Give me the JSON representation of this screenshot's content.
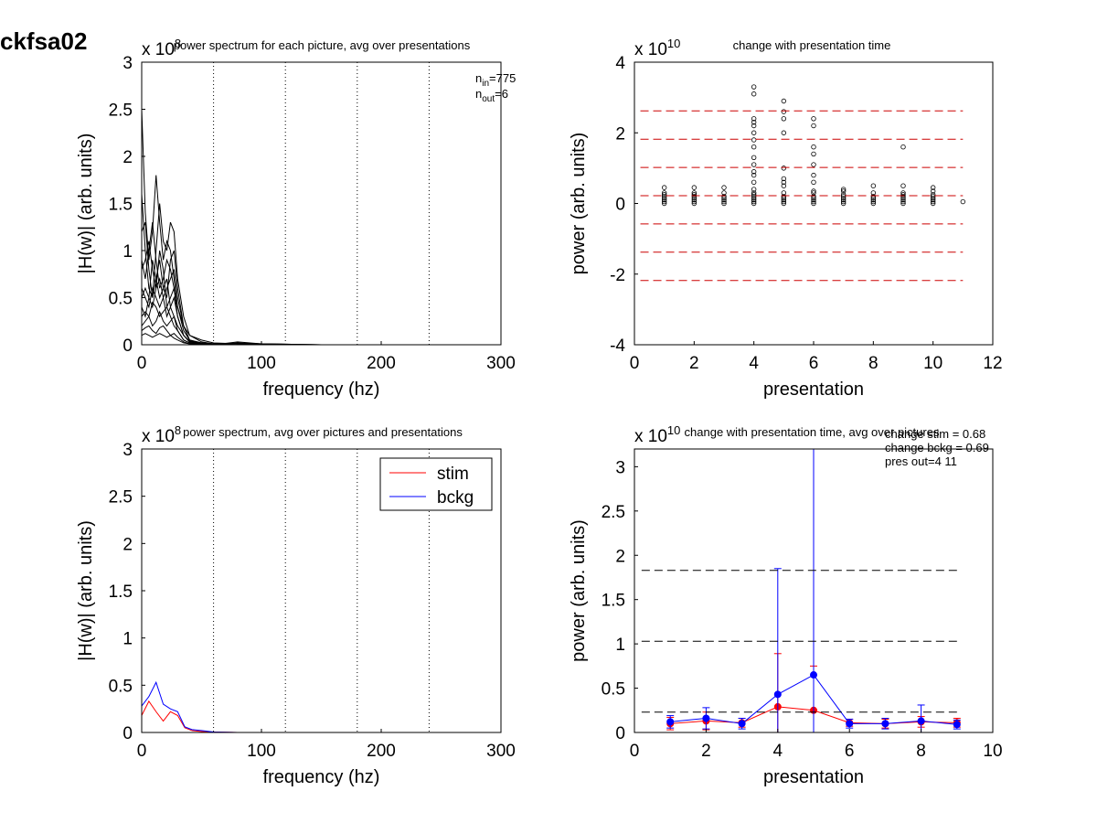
{
  "page_title": "ckfsa02",
  "chart_data": [
    {
      "id": "tl",
      "type": "line",
      "title": "power spectrum for each picture, avg over presentations",
      "xlabel": "frequency (hz)",
      "ylabel": "|H(w)| (arb. units)",
      "xlim": [
        0,
        300
      ],
      "ylim": [
        0,
        3
      ],
      "xticks": [
        0,
        100,
        200,
        300
      ],
      "yticks": [
        0,
        0.5,
        1,
        1.5,
        2,
        2.5,
        3
      ],
      "exponent": "x 10",
      "exponent_power": "8",
      "vlines": [
        60,
        120,
        180,
        240,
        300
      ],
      "annotation": [
        {
          "base": "n",
          "sub": "in",
          "rest": "=775"
        },
        {
          "base": "n",
          "sub": "out",
          "rest": "=6"
        }
      ],
      "series": [
        {
          "x": [
            0,
            3,
            6,
            9,
            12,
            15,
            18,
            21,
            24,
            27,
            30,
            35,
            40,
            50,
            60,
            80,
            100,
            150,
            300
          ],
          "values": [
            2.5,
            1.4,
            0.9,
            1.2,
            1.8,
            1.3,
            0.9,
            1.1,
            1.0,
            0.7,
            0.4,
            0.2,
            0.1,
            0.05,
            0.02,
            0.01,
            0.01,
            0,
            0
          ]
        },
        {
          "x": [
            0,
            3,
            6,
            9,
            12,
            15,
            18,
            21,
            24,
            27,
            30,
            35,
            40,
            50,
            60,
            80,
            100,
            150,
            300
          ],
          "values": [
            1.6,
            1.0,
            0.6,
            0.5,
            1.0,
            1.5,
            1.1,
            1.0,
            1.3,
            1.2,
            0.7,
            0.3,
            0.1,
            0.03,
            0.01,
            0,
            0,
            0,
            0
          ]
        },
        {
          "x": [
            0,
            3,
            6,
            9,
            12,
            15,
            18,
            21,
            24,
            27,
            30,
            35,
            40,
            50,
            60,
            80,
            100,
            150,
            300
          ],
          "values": [
            1.2,
            1.3,
            0.8,
            0.5,
            0.7,
            0.9,
            0.6,
            0.5,
            0.9,
            1.0,
            0.6,
            0.2,
            0.05,
            0.02,
            0.01,
            0,
            0,
            0,
            0
          ]
        },
        {
          "x": [
            0,
            3,
            6,
            9,
            12,
            15,
            18,
            21,
            24,
            27,
            30,
            35,
            40,
            50,
            60,
            80,
            100,
            150,
            300
          ],
          "values": [
            0.8,
            0.9,
            1.1,
            0.8,
            0.6,
            1.0,
            0.8,
            0.4,
            0.5,
            0.6,
            0.4,
            0.15,
            0.05,
            0.01,
            0.01,
            0,
            0,
            0,
            0
          ]
        },
        {
          "x": [
            0,
            3,
            6,
            9,
            12,
            15,
            18,
            21,
            24,
            27,
            30,
            35,
            40,
            50,
            60,
            80,
            100,
            150,
            300
          ],
          "values": [
            0.5,
            0.6,
            0.5,
            0.9,
            0.7,
            0.5,
            0.6,
            0.7,
            0.4,
            0.3,
            0.2,
            0.1,
            0.04,
            0.01,
            0,
            0,
            0,
            0,
            0
          ]
        },
        {
          "x": [
            0,
            3,
            6,
            9,
            12,
            15,
            18,
            21,
            24,
            27,
            30,
            35,
            40,
            50,
            60,
            80,
            100,
            150,
            300
          ],
          "values": [
            0.4,
            0.3,
            0.5,
            0.4,
            0.6,
            0.7,
            0.5,
            0.3,
            0.4,
            0.5,
            0.3,
            0.1,
            0.03,
            0.01,
            0,
            0,
            0,
            0,
            0
          ]
        },
        {
          "x": [
            0,
            3,
            6,
            9,
            12,
            15,
            18,
            21,
            24,
            27,
            30,
            35,
            40,
            50,
            60,
            80,
            100,
            150,
            300
          ],
          "values": [
            0.3,
            0.35,
            0.3,
            0.45,
            0.4,
            0.3,
            0.35,
            0.4,
            0.3,
            0.2,
            0.15,
            0.05,
            0.02,
            0.01,
            0,
            0.02,
            0.01,
            0,
            0
          ]
        },
        {
          "x": [
            0,
            3,
            6,
            9,
            12,
            15,
            18,
            21,
            24,
            27,
            30,
            35,
            40,
            50,
            60,
            80,
            100,
            150,
            300
          ],
          "values": [
            0.2,
            0.25,
            0.3,
            0.2,
            0.25,
            0.35,
            0.25,
            0.2,
            0.25,
            0.3,
            0.15,
            0.05,
            0.02,
            0,
            0,
            0.03,
            0.01,
            0,
            0
          ]
        },
        {
          "x": [
            0,
            3,
            6,
            9,
            12,
            15,
            18,
            21,
            24,
            27,
            30,
            35,
            40,
            50,
            60,
            80,
            100,
            150,
            300
          ],
          "values": [
            0.15,
            0.18,
            0.2,
            0.15,
            0.12,
            0.18,
            0.2,
            0.15,
            0.1,
            0.12,
            0.08,
            0.03,
            0.01,
            0,
            0,
            0,
            0,
            0,
            0
          ]
        },
        {
          "x": [
            0,
            3,
            6,
            9,
            12,
            15,
            18,
            21,
            24,
            27,
            30,
            35,
            40,
            50,
            60,
            80,
            100,
            150,
            300
          ],
          "values": [
            0.6,
            0.5,
            0.4,
            0.6,
            0.5,
            0.4,
            0.5,
            0.6,
            0.7,
            0.8,
            0.5,
            0.2,
            0.05,
            0.02,
            0.01,
            0,
            0,
            0,
            0
          ]
        },
        {
          "x": [
            0,
            3,
            6,
            9,
            12,
            15,
            18,
            21,
            24,
            27,
            30,
            35,
            40,
            50,
            60,
            80,
            100,
            150,
            300
          ],
          "values": [
            0.1,
            0.12,
            0.1,
            0.08,
            0.1,
            0.12,
            0.1,
            0.08,
            0.1,
            0.07,
            0.05,
            0.02,
            0.01,
            0,
            0,
            0,
            0,
            0,
            0
          ]
        },
        {
          "x": [
            0,
            3,
            6,
            9,
            12,
            15,
            18,
            21,
            24,
            27,
            30,
            35,
            40,
            50,
            60,
            80,
            100,
            150,
            300
          ],
          "values": [
            0.9,
            0.7,
            1.0,
            1.3,
            0.9,
            0.6,
            0.7,
            0.9,
            0.8,
            0.6,
            0.3,
            0.1,
            0.03,
            0.01,
            0,
            0,
            0,
            0,
            0
          ]
        }
      ]
    },
    {
      "id": "tr",
      "type": "scatter",
      "title": "change with presentation time",
      "xlabel": "presentation",
      "ylabel": "power (arb. units)",
      "xlim": [
        0,
        12
      ],
      "ylim": [
        -4,
        4
      ],
      "xticks": [
        0,
        2,
        4,
        6,
        8,
        10,
        12
      ],
      "yticks": [
        -4,
        -2,
        0,
        2,
        4
      ],
      "exponent": "x 10",
      "exponent_power": "10",
      "hlines": [
        2.62,
        1.82,
        1.02,
        0.22,
        -0.58,
        -1.38,
        -2.18
      ],
      "points": [
        {
          "x": 1,
          "ys": [
            0.0,
            0.05,
            0.1,
            0.15,
            0.2,
            0.25,
            0.3,
            0.45
          ]
        },
        {
          "x": 2,
          "ys": [
            0.0,
            0.05,
            0.1,
            0.15,
            0.2,
            0.25,
            0.3,
            0.45
          ]
        },
        {
          "x": 3,
          "ys": [
            0.0,
            0.05,
            0.1,
            0.15,
            0.2,
            0.3,
            0.45
          ]
        },
        {
          "x": 4,
          "ys": [
            0.0,
            0.05,
            0.1,
            0.15,
            0.2,
            0.25,
            0.3,
            0.4,
            0.6,
            0.8,
            0.9,
            1.1,
            1.3,
            1.6,
            1.8,
            2.0,
            2.2,
            2.3,
            2.4,
            3.1,
            3.3
          ]
        },
        {
          "x": 5,
          "ys": [
            0.0,
            0.05,
            0.1,
            0.15,
            0.2,
            0.3,
            0.5,
            0.6,
            0.7,
            1.0,
            2.0,
            2.4,
            2.6,
            2.9
          ]
        },
        {
          "x": 6,
          "ys": [
            0.0,
            0.05,
            0.1,
            0.15,
            0.2,
            0.3,
            0.35,
            0.6,
            0.8,
            1.1,
            1.4,
            1.6,
            2.2,
            2.4
          ]
        },
        {
          "x": 7,
          "ys": [
            0.0,
            0.05,
            0.1,
            0.15,
            0.2,
            0.25,
            0.35,
            0.4
          ]
        },
        {
          "x": 8,
          "ys": [
            0.0,
            0.05,
            0.1,
            0.15,
            0.2,
            0.3,
            0.5
          ]
        },
        {
          "x": 9,
          "ys": [
            0.0,
            0.05,
            0.1,
            0.15,
            0.2,
            0.25,
            0.3,
            0.5,
            1.6
          ]
        },
        {
          "x": 10,
          "ys": [
            0.0,
            0.05,
            0.1,
            0.15,
            0.2,
            0.25,
            0.35,
            0.45
          ]
        },
        {
          "x": 11,
          "ys": [
            0.05
          ]
        }
      ]
    },
    {
      "id": "bl",
      "type": "line",
      "title": "power spectrum, avg over pictures and presentations",
      "xlabel": "frequency (hz)",
      "ylabel": "|H(w)| (arb. units)",
      "xlim": [
        0,
        300
      ],
      "ylim": [
        0,
        3
      ],
      "xticks": [
        0,
        100,
        200,
        300
      ],
      "yticks": [
        0,
        0.5,
        1,
        1.5,
        2,
        2.5,
        3
      ],
      "exponent": "x 10",
      "exponent_power": "8",
      "vlines": [
        60,
        120,
        180,
        240,
        300
      ],
      "legend": [
        "stim",
        "bckg"
      ],
      "legend_position": "top-right",
      "series": [
        {
          "name": "stim",
          "color": "#ff0000",
          "x": [
            0,
            6,
            12,
            18,
            24,
            30,
            36,
            42,
            50,
            60,
            80,
            100,
            150,
            200,
            250,
            300
          ],
          "values": [
            0.18,
            0.33,
            0.22,
            0.12,
            0.22,
            0.18,
            0.05,
            0.02,
            0.01,
            0.005,
            0,
            0,
            0,
            0,
            0,
            0
          ]
        },
        {
          "name": "bckg",
          "color": "#0000ff",
          "x": [
            0,
            6,
            12,
            18,
            24,
            30,
            36,
            42,
            50,
            60,
            80,
            100,
            150,
            200,
            250,
            300
          ],
          "values": [
            0.28,
            0.38,
            0.53,
            0.3,
            0.25,
            0.22,
            0.06,
            0.03,
            0.02,
            0.005,
            0,
            0,
            0,
            0,
            0,
            0
          ]
        }
      ]
    },
    {
      "id": "br",
      "type": "line",
      "title": "change with presentation time, avg over pictures",
      "xlabel": "presentation",
      "ylabel": "power (arb. units)",
      "xlim": [
        0,
        10
      ],
      "ylim": [
        0,
        3.2
      ],
      "xticks": [
        0,
        2,
        4,
        6,
        8,
        10
      ],
      "yticks": [
        0,
        0.5,
        1,
        1.5,
        2,
        2.5,
        3
      ],
      "exponent": "x 10",
      "exponent_power": "10",
      "hlines": [
        1.83,
        1.03,
        0.23
      ],
      "annotation_lines": [
        "change stim = 0.68",
        "change bckg = 0.69",
        "pres out=4 11"
      ],
      "series": [
        {
          "name": "stim",
          "color": "#ff0000",
          "x": [
            1,
            2,
            3,
            4,
            5,
            6,
            7,
            8,
            9
          ],
          "values": [
            0.1,
            0.13,
            0.11,
            0.29,
            0.25,
            0.11,
            0.1,
            0.12,
            0.11
          ],
          "err": [
            0.07,
            0.1,
            0.05,
            0.6,
            0.5,
            0.04,
            0.05,
            0.06,
            0.05
          ]
        },
        {
          "name": "bckg",
          "color": "#0000ff",
          "x": [
            1,
            2,
            3,
            4,
            5,
            6,
            7,
            8,
            9
          ],
          "values": [
            0.12,
            0.16,
            0.1,
            0.43,
            0.65,
            0.1,
            0.1,
            0.13,
            0.09
          ],
          "err": [
            0.07,
            0.12,
            0.06,
            1.42,
            2.6,
            0.05,
            0.06,
            0.18,
            0.05
          ]
        }
      ]
    }
  ]
}
